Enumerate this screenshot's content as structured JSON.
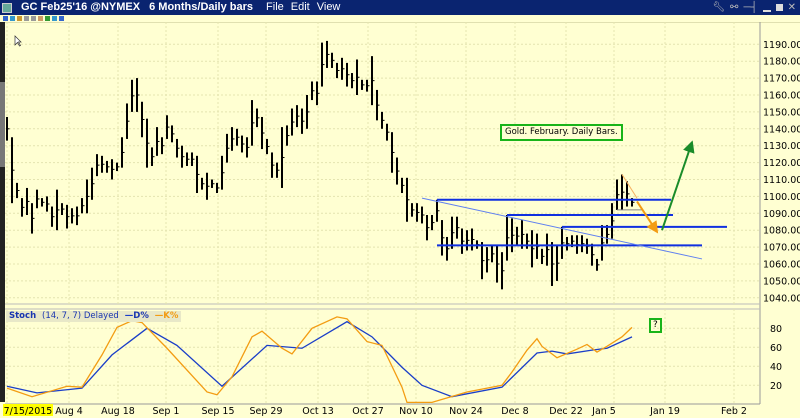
{
  "window": {
    "title": "GC Feb25'16 @NYMEX",
    "timeframe": "6 Months/Daily bars",
    "menus": [
      "File",
      "Edit",
      "View"
    ],
    "icons": [
      "wrench-icon",
      "link-icon",
      "pin-icon",
      "minimize-icon",
      "maximize-icon",
      "close-icon"
    ]
  },
  "annotation": {
    "label": "Gold. February. Daily Bars.",
    "question": "?"
  },
  "colors": {
    "background": "#ffffd2",
    "bars": "#000000",
    "support_lines": "#1030e0",
    "trend_line": "#6080f0",
    "k_line": "#f39c12",
    "d_line": "#1a3ec8",
    "up_arrow": "#1a8c2a",
    "down_arrow": "#f39c12",
    "titlebar": "#0a2470"
  },
  "chart_data": [
    {
      "type": "ohlc-bar",
      "title": "GC Feb25'16 @NYMEX",
      "ylim": [
        1040,
        1195
      ],
      "yticks": [
        1190,
        1180,
        1170,
        1160,
        1150,
        1140,
        1130,
        1120,
        1110,
        1100,
        1090,
        1080,
        1070,
        1060,
        1050,
        1040
      ],
      "ytick_labels": [
        "1190.00",
        "1180.00",
        "1170.00",
        "1160.00",
        "1150.00",
        "1140.00",
        "1130.00",
        "1120.00",
        "1110.00",
        "1100.00",
        "1090.00",
        "1080.00",
        "1070.00",
        "1060.00",
        "1050.00",
        "1040.00"
      ],
      "bars": [
        [
          1147,
          1133
        ],
        [
          1135,
          1096
        ],
        [
          1108,
          1099
        ],
        [
          1099,
          1088
        ],
        [
          1105,
          1089
        ],
        [
          1096,
          1078
        ],
        [
          1104,
          1093
        ],
        [
          1099,
          1094
        ],
        [
          1100,
          1091
        ],
        [
          1094,
          1082
        ],
        [
          1104,
          1080
        ],
        [
          1096,
          1089
        ],
        [
          1095,
          1081
        ],
        [
          1093,
          1084
        ],
        [
          1094,
          1083
        ],
        [
          1099,
          1090
        ],
        [
          1110,
          1090
        ],
        [
          1117,
          1098
        ],
        [
          1125,
          1112
        ],
        [
          1124,
          1114
        ],
        [
          1121,
          1114
        ],
        [
          1122,
          1110
        ],
        [
          1120,
          1115
        ],
        [
          1135,
          1117
        ],
        [
          1155,
          1134
        ],
        [
          1169,
          1150
        ],
        [
          1170,
          1150
        ],
        [
          1156,
          1135
        ],
        [
          1146,
          1117
        ],
        [
          1129,
          1118
        ],
        [
          1141,
          1124
        ],
        [
          1135,
          1125
        ],
        [
          1148,
          1134
        ],
        [
          1142,
          1132
        ],
        [
          1134,
          1123
        ],
        [
          1130,
          1117
        ],
        [
          1126,
          1118
        ],
        [
          1126,
          1118
        ],
        [
          1124,
          1102
        ],
        [
          1111,
          1104
        ],
        [
          1114,
          1098
        ],
        [
          1110,
          1105
        ],
        [
          1108,
          1102
        ],
        [
          1124,
          1104
        ],
        [
          1137,
          1120
        ],
        [
          1141,
          1127
        ],
        [
          1140,
          1130
        ],
        [
          1136,
          1126
        ],
        [
          1135,
          1123
        ],
        [
          1157,
          1130
        ],
        [
          1152,
          1141
        ],
        [
          1147,
          1128
        ],
        [
          1134,
          1125
        ],
        [
          1126,
          1111
        ],
        [
          1120,
          1111
        ],
        [
          1141,
          1105
        ],
        [
          1142,
          1130
        ],
        [
          1152,
          1136
        ],
        [
          1154,
          1141
        ],
        [
          1152,
          1137
        ],
        [
          1160,
          1140
        ],
        [
          1168,
          1157
        ],
        [
          1168,
          1154
        ],
        [
          1191,
          1165
        ],
        [
          1192,
          1176
        ],
        [
          1185,
          1176
        ],
        [
          1179,
          1170
        ],
        [
          1182,
          1169
        ],
        [
          1179,
          1165
        ],
        [
          1173,
          1164
        ],
        [
          1181,
          1160
        ],
        [
          1169,
          1163
        ],
        [
          1169,
          1162
        ],
        [
          1183,
          1154
        ],
        [
          1163,
          1145
        ],
        [
          1150,
          1140
        ],
        [
          1143,
          1133
        ],
        [
          1138,
          1114
        ],
        [
          1123,
          1107
        ],
        [
          1111,
          1102
        ],
        [
          1111,
          1085
        ],
        [
          1096,
          1088
        ],
        [
          1096,
          1085
        ],
        [
          1094,
          1084
        ],
        [
          1089,
          1074
        ],
        [
          1089,
          1080
        ],
        [
          1098,
          1085
        ],
        [
          1086,
          1065
        ],
        [
          1076,
          1062
        ],
        [
          1088,
          1069
        ],
        [
          1088,
          1075
        ],
        [
          1081,
          1066
        ],
        [
          1080,
          1068
        ],
        [
          1081,
          1068
        ],
        [
          1074,
          1069
        ],
        [
          1073,
          1051
        ],
        [
          1070,
          1055
        ],
        [
          1071,
          1061
        ],
        [
          1071,
          1049
        ],
        [
          1067,
          1045
        ],
        [
          1089,
          1062
        ],
        [
          1087,
          1067
        ],
        [
          1082,
          1071
        ],
        [
          1086,
          1069
        ],
        [
          1078,
          1069
        ],
        [
          1080,
          1058
        ],
        [
          1078,
          1063
        ],
        [
          1069,
          1060
        ],
        [
          1078,
          1059
        ],
        [
          1073,
          1047
        ],
        [
          1071,
          1050
        ],
        [
          1082,
          1063
        ],
        [
          1076,
          1068
        ],
        [
          1077,
          1070
        ],
        [
          1077,
          1066
        ],
        [
          1077,
          1067
        ],
        [
          1075,
          1066
        ],
        [
          1072,
          1059
        ],
        [
          1063,
          1056
        ],
        [
          1083,
          1062
        ],
        [
          1083,
          1072
        ],
        [
          1096,
          1075
        ],
        [
          1110,
          1092
        ],
        [
          1113,
          1092
        ],
        [
          1109,
          1094
        ],
        [
          1099,
          1094
        ]
      ],
      "support_lines": [
        {
          "price": 1098,
          "from_bar": 87,
          "to": "Jan 19"
        },
        {
          "price": 1089,
          "from_bar": 101,
          "to": "Jan 19"
        },
        {
          "price": 1082,
          "from_bar": 112,
          "to": "Feb 2"
        },
        {
          "price": 1071,
          "from_bar": 87,
          "to": "Jan 19"
        }
      ],
      "trend_line": {
        "from": [
          84,
          1099
        ],
        "to": [
          140,
          1063
        ]
      },
      "arrows": [
        {
          "color": "down",
          "from": [
            127,
            1097
          ],
          "to": [
            131,
            1079
          ]
        },
        {
          "color": "up",
          "from": [
            132,
            1080
          ],
          "to": [
            138,
            1132
          ]
        }
      ]
    },
    {
      "type": "line",
      "title": "Stoch",
      "params": "(14, 7, 7) Delayed",
      "ylim": [
        0,
        100
      ],
      "yticks": [
        20,
        40,
        60,
        80
      ],
      "series": [
        {
          "name": "D%",
          "points": [
            [
              1,
              19
            ],
            [
              7,
              12
            ],
            [
              16,
              17
            ],
            [
              22,
              52
            ],
            [
              29,
              80
            ],
            [
              35,
              62
            ],
            [
              44,
              19
            ],
            [
              53,
              62
            ],
            [
              60,
              59
            ],
            [
              69,
              87
            ],
            [
              74,
              71
            ],
            [
              80,
              39
            ],
            [
              84,
              20
            ],
            [
              90,
              8
            ],
            [
              100,
              18
            ],
            [
              107,
              54
            ],
            [
              110,
              56
            ],
            [
              113,
              53
            ],
            [
              118,
              57
            ],
            [
              121,
              59
            ],
            [
              126,
              71
            ]
          ]
        },
        {
          "name": "K%",
          "points": [
            [
              1,
              17
            ],
            [
              6,
              8
            ],
            [
              13,
              19
            ],
            [
              16,
              18
            ],
            [
              20,
              52
            ],
            [
              23,
              81
            ],
            [
              26,
              88
            ],
            [
              28,
              86
            ],
            [
              33,
              59
            ],
            [
              41,
              13
            ],
            [
              43,
              10
            ],
            [
              46,
              29
            ],
            [
              50,
              71
            ],
            [
              52,
              77
            ],
            [
              56,
              59
            ],
            [
              58,
              53
            ],
            [
              62,
              80
            ],
            [
              67,
              92
            ],
            [
              69,
              90
            ],
            [
              73,
              66
            ],
            [
              76,
              62
            ],
            [
              80,
              18
            ],
            [
              81,
              2
            ],
            [
              86,
              2
            ],
            [
              93,
              13
            ],
            [
              100,
              20
            ],
            [
              102,
              34
            ],
            [
              105,
              57
            ],
            [
              107,
              69
            ],
            [
              108,
              61
            ],
            [
              111,
              49
            ],
            [
              115,
              58
            ],
            [
              117,
              63
            ],
            [
              119,
              55
            ],
            [
              121,
              61
            ],
            [
              124,
              71
            ],
            [
              126,
              81
            ]
          ]
        }
      ],
      "xtick_labels": [
        "7/15/2015",
        "Aug 4",
        "Aug 18",
        "Sep 1",
        "Sep 15",
        "Sep 29",
        "Oct 13",
        "Oct 27",
        "Nov 10",
        "Nov 24",
        "Dec 8",
        "Dec 22",
        "Jan 5",
        "Jan 19",
        "Feb 2"
      ]
    }
  ]
}
